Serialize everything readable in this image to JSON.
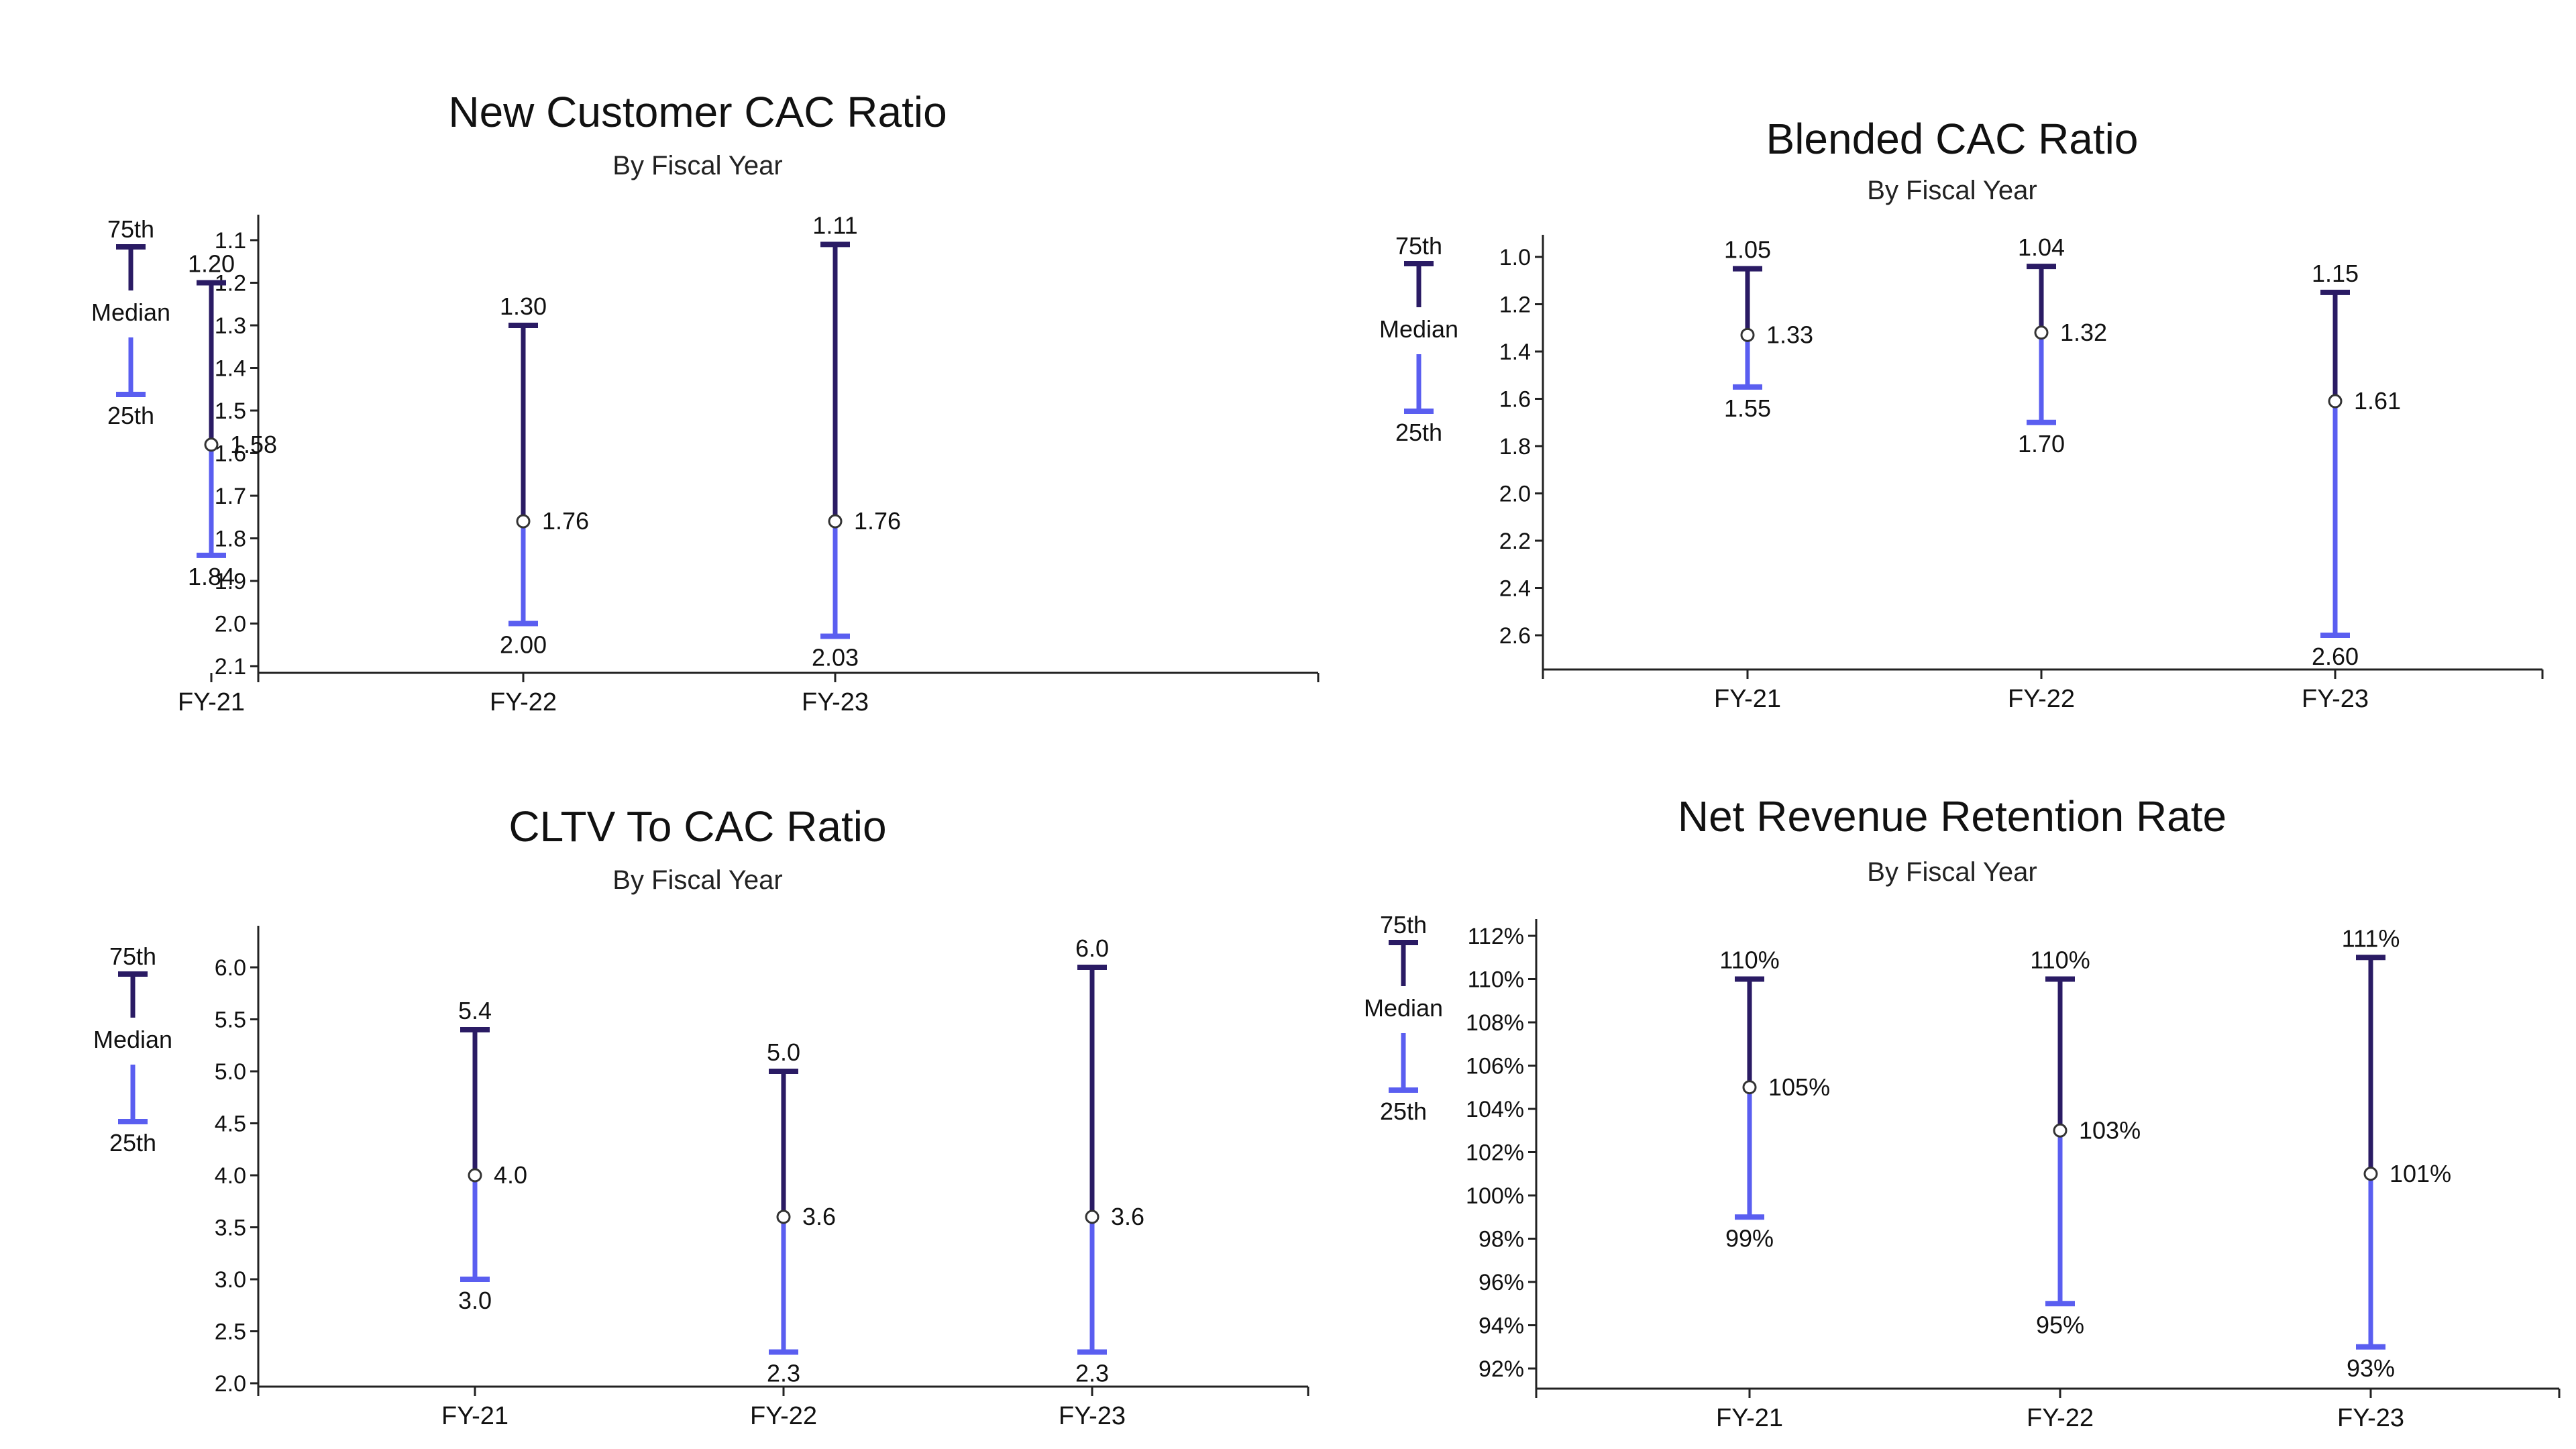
{
  "colors": {
    "upper": "#2a1b64",
    "lower": "#5a5ef0",
    "axis": "#222222",
    "median_fill": "#ffffff"
  },
  "legend": {
    "p75": "75th",
    "median": "Median",
    "p25": "25th"
  },
  "chart_data": [
    {
      "type": "range",
      "title": "New Customer CAC Ratio",
      "subtitle": "By Fiscal Year",
      "y_inverted": true,
      "ylim": [
        1.05,
        2.15
      ],
      "yticks": [
        "1.1",
        "1.2",
        "1.3",
        "1.4",
        "1.5",
        "1.6",
        "1.7",
        "1.8",
        "1.9",
        "2.0",
        "2.1"
      ],
      "categories": [
        "FY-21",
        "FY-22",
        "FY-23"
      ],
      "p75": [
        1.2,
        1.3,
        1.11
      ],
      "median": [
        1.58,
        1.76,
        1.76
      ],
      "p25": [
        1.84,
        2.0,
        2.03
      ],
      "p75_labels": [
        "1.20",
        "1.30",
        "1.11"
      ],
      "median_labels": [
        "1.58",
        "1.76",
        "1.76"
      ],
      "p25_labels": [
        "1.84",
        "2.00",
        "2.03"
      ]
    },
    {
      "type": "range",
      "title": "Blended CAC Ratio",
      "subtitle": "By Fiscal Year",
      "y_inverted": true,
      "ylim": [
        0.9,
        2.75
      ],
      "yticks": [
        "1.0",
        "1.2",
        "1.4",
        "1.6",
        "1.8",
        "2.0",
        "2.2",
        "2.4",
        "2.6"
      ],
      "categories": [
        "FY-21",
        "FY-22",
        "FY-23"
      ],
      "p75": [
        1.05,
        1.04,
        1.15
      ],
      "median": [
        1.33,
        1.32,
        1.61
      ],
      "p25": [
        1.55,
        1.7,
        2.6
      ],
      "p75_labels": [
        "1.05",
        "1.04",
        "1.15"
      ],
      "median_labels": [
        "1.33",
        "1.32",
        "1.61"
      ],
      "p25_labels": [
        "1.55",
        "1.70",
        "2.60"
      ]
    },
    {
      "type": "range",
      "title": "CLTV To CAC Ratio",
      "subtitle": "By Fiscal Year",
      "y_inverted": false,
      "ylim": [
        1.95,
        6.3
      ],
      "yticks": [
        "2.0",
        "2.5",
        "3.0",
        "3.5",
        "4.0",
        "4.5",
        "5.0",
        "5.5",
        "6.0"
      ],
      "categories": [
        "FY-21",
        "FY-22",
        "FY-23"
      ],
      "p75": [
        5.4,
        5.0,
        6.0
      ],
      "median": [
        4.0,
        3.6,
        3.6
      ],
      "p25": [
        3.0,
        2.3,
        2.3
      ],
      "p75_labels": [
        "5.4",
        "5.0",
        "6.0"
      ],
      "median_labels": [
        "4.0",
        "3.6",
        "3.6"
      ],
      "p25_labels": [
        "3.0",
        "2.3",
        "2.3"
      ]
    },
    {
      "type": "range",
      "title": "Net Revenue Retention Rate",
      "subtitle": "By Fiscal Year",
      "y_inverted": false,
      "ylim": [
        91.6,
        112.2
      ],
      "yticks": [
        "92%",
        "94%",
        "96%",
        "98%",
        "100%",
        "102%",
        "104%",
        "106%",
        "108%",
        "110%",
        "112%"
      ],
      "categories": [
        "FY-21",
        "FY-22",
        "FY-23"
      ],
      "p75": [
        110,
        110,
        111
      ],
      "median": [
        105,
        103,
        101
      ],
      "p25": [
        99,
        95,
        93
      ],
      "p75_labels": [
        "110%",
        "110%",
        "111%"
      ],
      "median_labels": [
        "105%",
        "103%",
        "101%"
      ],
      "p25_labels": [
        "99%",
        "95%",
        "93%"
      ]
    }
  ]
}
